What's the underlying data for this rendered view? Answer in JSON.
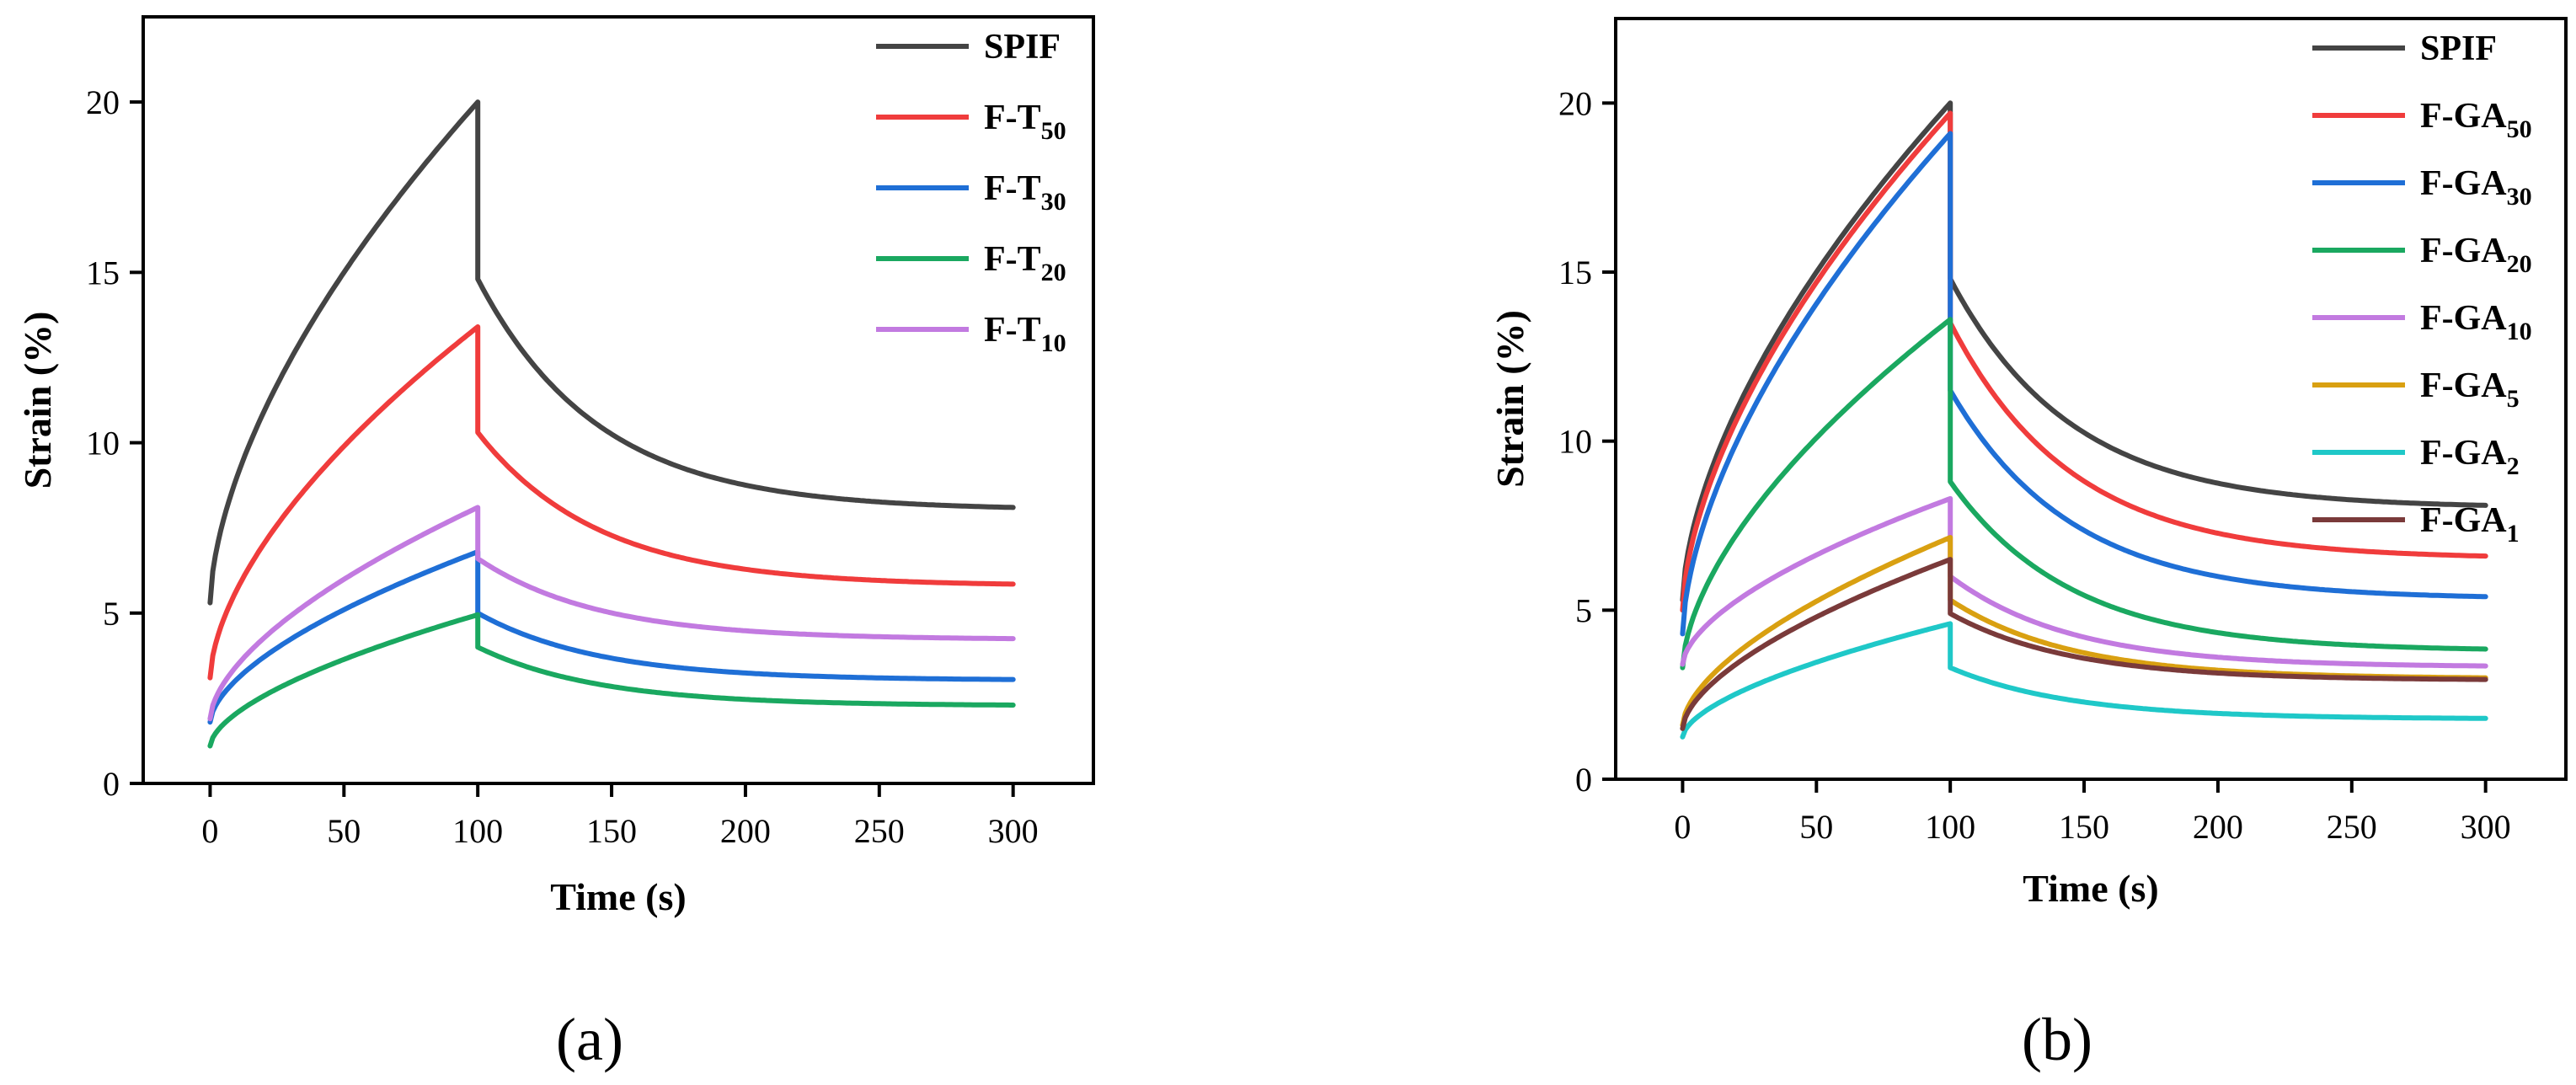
{
  "chart_data": [
    {
      "type": "line",
      "panel_label": "(a)",
      "xlabel": "Time (s)",
      "ylabel": "Strain (%)",
      "xlim": [
        -25,
        330
      ],
      "ylim": [
        0,
        22.5
      ],
      "xticks": [
        0,
        50,
        100,
        150,
        200,
        250,
        300
      ],
      "yticks": [
        0,
        5,
        10,
        15,
        20
      ],
      "legend_position": "top-right",
      "series": [
        {
          "name": "SPIF",
          "base": "SPIF",
          "sub": "",
          "color": "#444444",
          "y0": 5.3,
          "y_peak": 20.0,
          "y_after": 14.8,
          "y_end": 8.1
        },
        {
          "name": "F-T50",
          "base": "F-T",
          "sub": "50",
          "color": "#f03c3c",
          "y0": 3.1,
          "y_peak": 13.4,
          "y_after": 10.3,
          "y_end": 5.85
        },
        {
          "name": "F-T30",
          "base": "F-T",
          "sub": "30",
          "color": "#1f6fd6",
          "y0": 1.8,
          "y_peak": 6.8,
          "y_after": 5.0,
          "y_end": 3.05
        },
        {
          "name": "F-T20",
          "base": "F-T",
          "sub": "20",
          "color": "#1aa860",
          "y0": 1.1,
          "y_peak": 4.95,
          "y_after": 4.0,
          "y_end": 2.3
        },
        {
          "name": "F-T10",
          "base": "F-T",
          "sub": "10",
          "color": "#c27ae0",
          "y0": 1.9,
          "y_peak": 8.1,
          "y_after": 6.6,
          "y_end": 4.25
        }
      ]
    },
    {
      "type": "line",
      "panel_label": "(b)",
      "xlabel": "Time (s)",
      "ylabel": "Strain (%)",
      "xlim": [
        -25,
        330
      ],
      "ylim": [
        0,
        22.5
      ],
      "xticks": [
        0,
        50,
        100,
        150,
        200,
        250,
        300
      ],
      "yticks": [
        0,
        5,
        10,
        15,
        20
      ],
      "legend_position": "top-right",
      "series": [
        {
          "name": "SPIF",
          "base": "SPIF",
          "sub": "",
          "color": "#444444",
          "y0": 5.3,
          "y_peak": 20.0,
          "y_after": 14.8,
          "y_end": 8.1
        },
        {
          "name": "F-GA50",
          "base": "F-GA",
          "sub": "50",
          "color": "#f03c3c",
          "y0": 5.0,
          "y_peak": 19.7,
          "y_after": 13.5,
          "y_end": 6.6
        },
        {
          "name": "F-GA30",
          "base": "F-GA",
          "sub": "30",
          "color": "#1f6fd6",
          "y0": 4.3,
          "y_peak": 19.1,
          "y_after": 11.5,
          "y_end": 5.4
        },
        {
          "name": "F-GA20",
          "base": "F-GA",
          "sub": "20",
          "color": "#1aa860",
          "y0": 3.3,
          "y_peak": 13.6,
          "y_after": 8.8,
          "y_end": 3.85
        },
        {
          "name": "F-GA10",
          "base": "F-GA",
          "sub": "10",
          "color": "#c27ae0",
          "y0": 3.4,
          "y_peak": 8.3,
          "y_after": 6.0,
          "y_end": 3.35
        },
        {
          "name": "F-GA5",
          "base": "F-GA",
          "sub": "5",
          "color": "#d9a011",
          "y0": 1.6,
          "y_peak": 7.15,
          "y_after": 5.3,
          "y_end": 3.0
        },
        {
          "name": "F-GA2",
          "base": "F-GA",
          "sub": "2",
          "color": "#1fc8c8",
          "y0": 1.25,
          "y_peak": 4.6,
          "y_after": 3.3,
          "y_end": 1.8
        },
        {
          "name": "F-GA1",
          "base": "F-GA",
          "sub": "1",
          "color": "#7a3a3a",
          "y0": 1.5,
          "y_peak": 6.5,
          "y_after": 4.9,
          "y_end": 2.95
        }
      ]
    }
  ]
}
